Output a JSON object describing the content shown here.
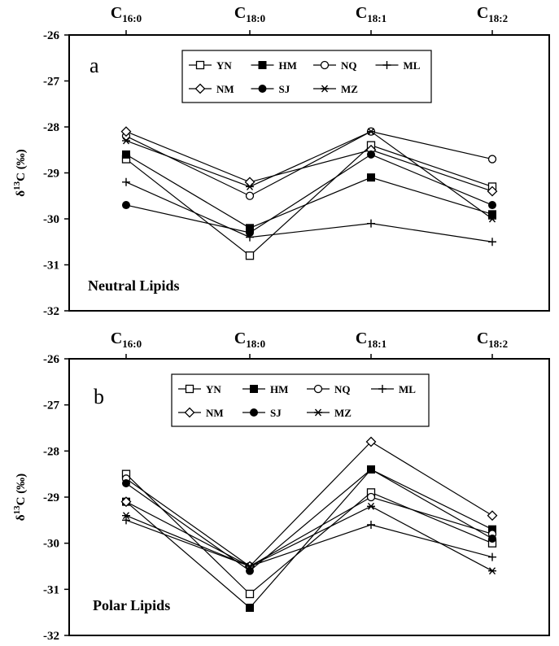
{
  "chart_data": [
    {
      "type": "line",
      "panel_label": "a",
      "annotation": "Neutral Lipids",
      "ylabel": "δ13C (‰)",
      "ylim": [
        -32,
        -26
      ],
      "yticks": [
        -26,
        -27,
        -28,
        -29,
        -30,
        -31,
        -32
      ],
      "categories": [
        {
          "main": "C",
          "sub": "16:0"
        },
        {
          "main": "C",
          "sub": "18:0"
        },
        {
          "main": "C",
          "sub": "18:1"
        },
        {
          "main": "C",
          "sub": "18:2"
        }
      ],
      "series": [
        {
          "name": "YN",
          "marker": "square-open",
          "values": [
            -28.7,
            -30.8,
            -28.4,
            -29.3
          ]
        },
        {
          "name": "HM",
          "marker": "square-filled",
          "values": [
            -28.6,
            -30.2,
            -29.1,
            -29.9
          ]
        },
        {
          "name": "NQ",
          "marker": "circle-open",
          "values": [
            -28.2,
            -29.5,
            -28.1,
            -28.7
          ]
        },
        {
          "name": "ML",
          "marker": "plus",
          "values": [
            -29.2,
            -30.4,
            -30.1,
            -30.5
          ]
        },
        {
          "name": "NM",
          "marker": "diamond-open",
          "values": [
            -28.1,
            -29.2,
            -28.5,
            -29.4
          ]
        },
        {
          "name": "SJ",
          "marker": "circle-filled",
          "values": [
            -29.7,
            -30.3,
            -28.6,
            -29.7
          ]
        },
        {
          "name": "MZ",
          "marker": "asterisk",
          "values": [
            -28.3,
            -29.3,
            -28.1,
            -30.0
          ]
        }
      ]
    },
    {
      "type": "line",
      "panel_label": "b",
      "annotation": "Polar Lipids",
      "ylabel": "δ13C (‰)",
      "ylim": [
        -32,
        -26
      ],
      "yticks": [
        -26,
        -27,
        -28,
        -29,
        -30,
        -31,
        -32
      ],
      "categories": [
        {
          "main": "C",
          "sub": "16:0"
        },
        {
          "main": "C",
          "sub": "18:0"
        },
        {
          "main": "C",
          "sub": "18:1"
        },
        {
          "main": "C",
          "sub": "18:2"
        }
      ],
      "series": [
        {
          "name": "YN",
          "marker": "square-open",
          "values": [
            -28.5,
            -31.1,
            -28.9,
            -30.0
          ]
        },
        {
          "name": "HM",
          "marker": "square-filled",
          "values": [
            -29.1,
            -31.4,
            -28.4,
            -29.7
          ]
        },
        {
          "name": "NQ",
          "marker": "circle-open",
          "values": [
            -28.6,
            -30.5,
            -29.0,
            -29.8
          ]
        },
        {
          "name": "ML",
          "marker": "plus",
          "values": [
            -29.5,
            -30.5,
            -29.6,
            -30.3
          ]
        },
        {
          "name": "NM",
          "marker": "diamond-open",
          "values": [
            -29.1,
            -30.5,
            -27.8,
            -29.4
          ]
        },
        {
          "name": "SJ",
          "marker": "circle-filled",
          "values": [
            -28.7,
            -30.6,
            -28.4,
            -29.9
          ]
        },
        {
          "name": "MZ",
          "marker": "asterisk",
          "values": [
            -29.4,
            -30.5,
            -29.2,
            -30.6
          ]
        }
      ]
    }
  ]
}
